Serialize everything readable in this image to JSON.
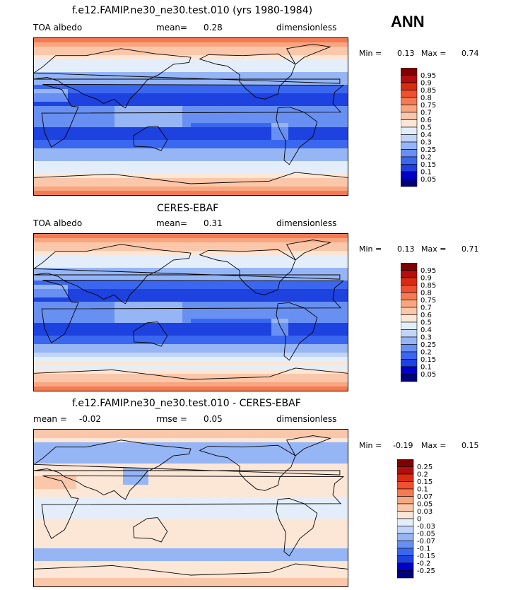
{
  "season": "ANN",
  "colors": {
    "albedo": [
      "#00007f",
      "#0000cc",
      "#1d42e0",
      "#3b67f0",
      "#6890f2",
      "#95b5f5",
      "#c1d5f8",
      "#e4eefb",
      "#fce6d6",
      "#fbc7aa",
      "#f8a67f",
      "#f47a54",
      "#ee5030",
      "#d92b12",
      "#b30d0d",
      "#800000"
    ],
    "diff": [
      "#00007f",
      "#0000cc",
      "#1d42e0",
      "#3b67f0",
      "#6890f2",
      "#95b5f5",
      "#c1d5f8",
      "#e4eefb",
      "#fce6d6",
      "#fbc7aa",
      "#f8a67f",
      "#f47a54",
      "#ee5030",
      "#d92b12",
      "#b30d0d",
      "#800000"
    ]
  },
  "chart_data": [
    {
      "type": "heatmap",
      "title": "f.e12.FAMIP.ne30_ne30.test.010 (yrs 1980-1984)",
      "left_label": "TOA albedo",
      "stat1_label": "mean=",
      "stat1_value": "0.28",
      "units": "dimensionless",
      "min_label": "Min =",
      "min_value": "0.13",
      "max_label": "Max =",
      "max_value": "0.74",
      "colorbar_levels": [
        "0.95",
        "0.9",
        "0.85",
        "0.8",
        "0.75",
        "0.7",
        "0.6",
        "0.5",
        "0.4",
        "0.3",
        "0.25",
        "0.2",
        "0.15",
        "0.1",
        "0.05"
      ]
    },
    {
      "type": "heatmap",
      "title": "CERES-EBAF",
      "left_label": "TOA albedo",
      "stat1_label": "mean=",
      "stat1_value": "0.31",
      "units": "dimensionless",
      "min_label": "Min =",
      "min_value": "0.13",
      "max_label": "Max =",
      "max_value": "0.71",
      "colorbar_levels": [
        "0.95",
        "0.9",
        "0.85",
        "0.8",
        "0.75",
        "0.7",
        "0.6",
        "0.5",
        "0.4",
        "0.3",
        "0.25",
        "0.2",
        "0.15",
        "0.1",
        "0.05"
      ]
    },
    {
      "type": "heatmap",
      "title": "f.e12.FAMIP.ne30_ne30.test.010 - CERES-EBAF",
      "left_label": "mean =",
      "left_value": "-0.02",
      "stat1_label": "rmse =",
      "stat1_value": "0.05",
      "units": "dimensionless",
      "min_label": "Min =",
      "min_value": "-0.19",
      "max_label": "Max =",
      "max_value": "0.15",
      "colorbar_levels": [
        "0.25",
        "0.2",
        "0.15",
        "0.1",
        "0.07",
        "0.05",
        "0.03",
        "0",
        "-0.03",
        "-0.05",
        "-0.07",
        "-0.1",
        "-0.15",
        "-0.2",
        "-0.25"
      ]
    }
  ]
}
